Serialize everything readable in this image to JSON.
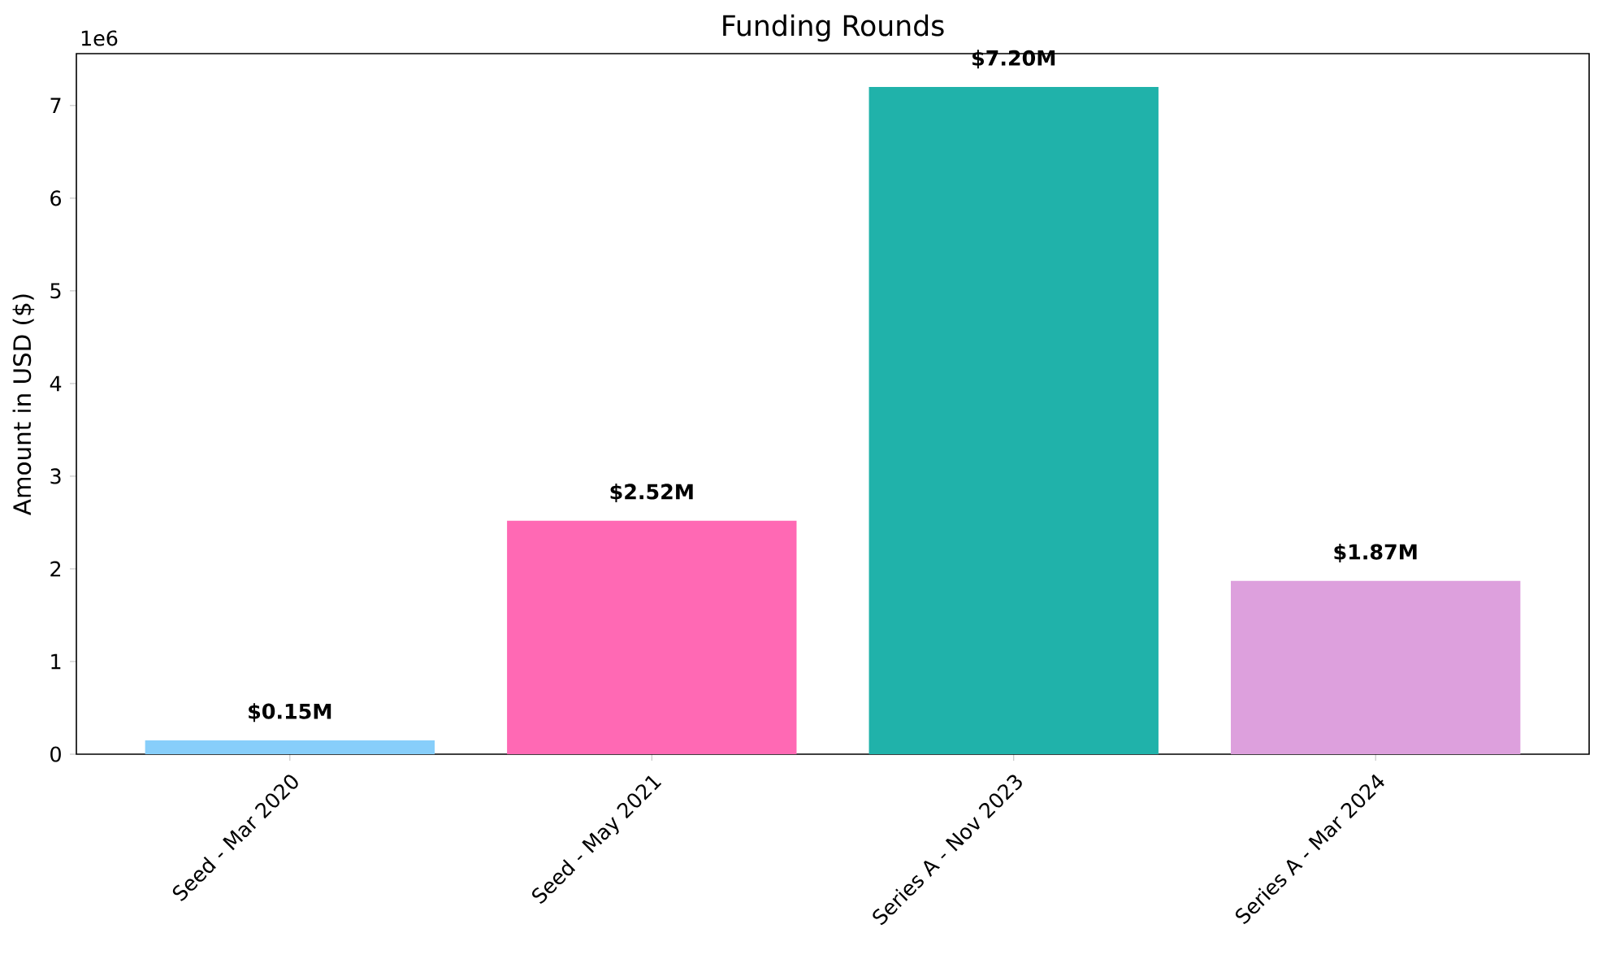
{
  "chart_data": {
    "type": "bar",
    "title": "Funding Rounds",
    "ylabel": "Amount in USD ($)",
    "categories": [
      "Seed - Mar 2020",
      "Seed - May 2021",
      "Series A - Nov 2023",
      "Series A - Mar 2024"
    ],
    "values": [
      0.15,
      2.52,
      7.2,
      1.87
    ],
    "colors": [
      "#87cefa",
      "#ff69b4",
      "#20b2aa",
      "#dda0dd"
    ],
    "value_labels": [
      "$0.15M",
      "$2.52M",
      "$7.20M",
      "$1.87M"
    ],
    "ylim": [
      0,
      7.56
    ],
    "yticks": [
      0,
      1,
      2,
      3,
      4,
      5,
      6,
      7
    ],
    "annotations": [
      "1e6"
    ]
  }
}
